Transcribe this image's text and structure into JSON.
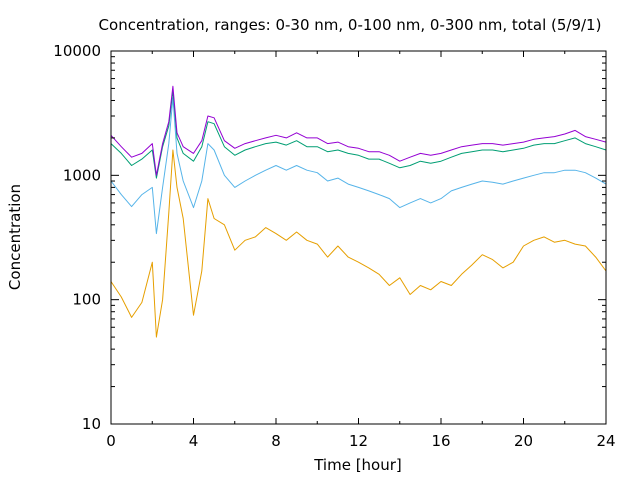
{
  "chart_data": {
    "type": "line",
    "title": "Concentration, ranges: 0-30 nm, 0-100 nm, 0-300 nm, total (5/9/1)",
    "xlabel": "Time [hour]",
    "ylabel": "Concentration",
    "xlim": [
      0,
      24
    ],
    "ylim": [
      10,
      10000
    ],
    "yscale": "log",
    "grid": false,
    "legend": "none",
    "x_ticks": [
      "0",
      "4",
      "8",
      "12",
      "16",
      "20",
      "24"
    ],
    "y_ticks": [
      "10",
      "100",
      "1000",
      "10000"
    ],
    "x": [
      0,
      0.5,
      1,
      1.5,
      2,
      2.2,
      2.5,
      2.8,
      3,
      3.2,
      3.5,
      4,
      4.4,
      4.7,
      5,
      5.5,
      6,
      6.5,
      7,
      7.5,
      8,
      8.5,
      9,
      9.5,
      10,
      10.5,
      11,
      11.5,
      12,
      12.5,
      13,
      13.5,
      14,
      14.5,
      15,
      15.5,
      16,
      16.5,
      17,
      17.5,
      18,
      18.5,
      19,
      19.5,
      20,
      20.5,
      21,
      21.5,
      22,
      22.5,
      23,
      23.5,
      24
    ],
    "series": [
      {
        "color": "#E69F00",
        "values": [
          140,
          105,
          72,
          95,
          200,
          50,
          100,
          500,
          1600,
          800,
          450,
          75,
          170,
          650,
          450,
          400,
          250,
          300,
          320,
          380,
          340,
          300,
          350,
          300,
          280,
          220,
          270,
          220,
          200,
          180,
          160,
          130,
          150,
          110,
          130,
          120,
          140,
          130,
          160,
          190,
          230,
          210,
          180,
          200,
          270,
          300,
          320,
          290,
          300,
          280,
          270,
          220,
          170
        ]
      },
      {
        "color": "#56B4E9",
        "values": [
          900,
          700,
          560,
          700,
          800,
          340,
          800,
          1800,
          4200,
          1500,
          900,
          550,
          900,
          1800,
          1600,
          1000,
          800,
          900,
          1000,
          1100,
          1200,
          1100,
          1200,
          1100,
          1050,
          900,
          950,
          850,
          800,
          750,
          700,
          650,
          550,
          600,
          650,
          600,
          650,
          750,
          800,
          850,
          900,
          880,
          850,
          900,
          950,
          1000,
          1050,
          1050,
          1100,
          1100,
          1050,
          950,
          850
        ]
      },
      {
        "color": "#009E73",
        "values": [
          1800,
          1500,
          1200,
          1350,
          1600,
          950,
          1700,
          2500,
          4800,
          2000,
          1500,
          1300,
          1700,
          2700,
          2600,
          1700,
          1450,
          1600,
          1700,
          1800,
          1850,
          1750,
          1900,
          1700,
          1700,
          1550,
          1600,
          1500,
          1450,
          1350,
          1350,
          1250,
          1150,
          1200,
          1300,
          1250,
          1300,
          1400,
          1500,
          1550,
          1600,
          1600,
          1550,
          1600,
          1650,
          1750,
          1800,
          1800,
          1900,
          2000,
          1800,
          1700,
          1600
        ]
      },
      {
        "color": "#9400D3",
        "values": [
          2100,
          1700,
          1400,
          1500,
          1800,
          1000,
          1800,
          2700,
          5200,
          2200,
          1700,
          1500,
          1900,
          3000,
          2900,
          1900,
          1650,
          1800,
          1900,
          2000,
          2100,
          2000,
          2200,
          2000,
          2000,
          1800,
          1850,
          1700,
          1650,
          1550,
          1550,
          1450,
          1300,
          1400,
          1500,
          1450,
          1500,
          1600,
          1700,
          1750,
          1800,
          1800,
          1750,
          1800,
          1850,
          1950,
          2000,
          2050,
          2150,
          2300,
          2050,
          1950,
          1850
        ]
      }
    ]
  }
}
